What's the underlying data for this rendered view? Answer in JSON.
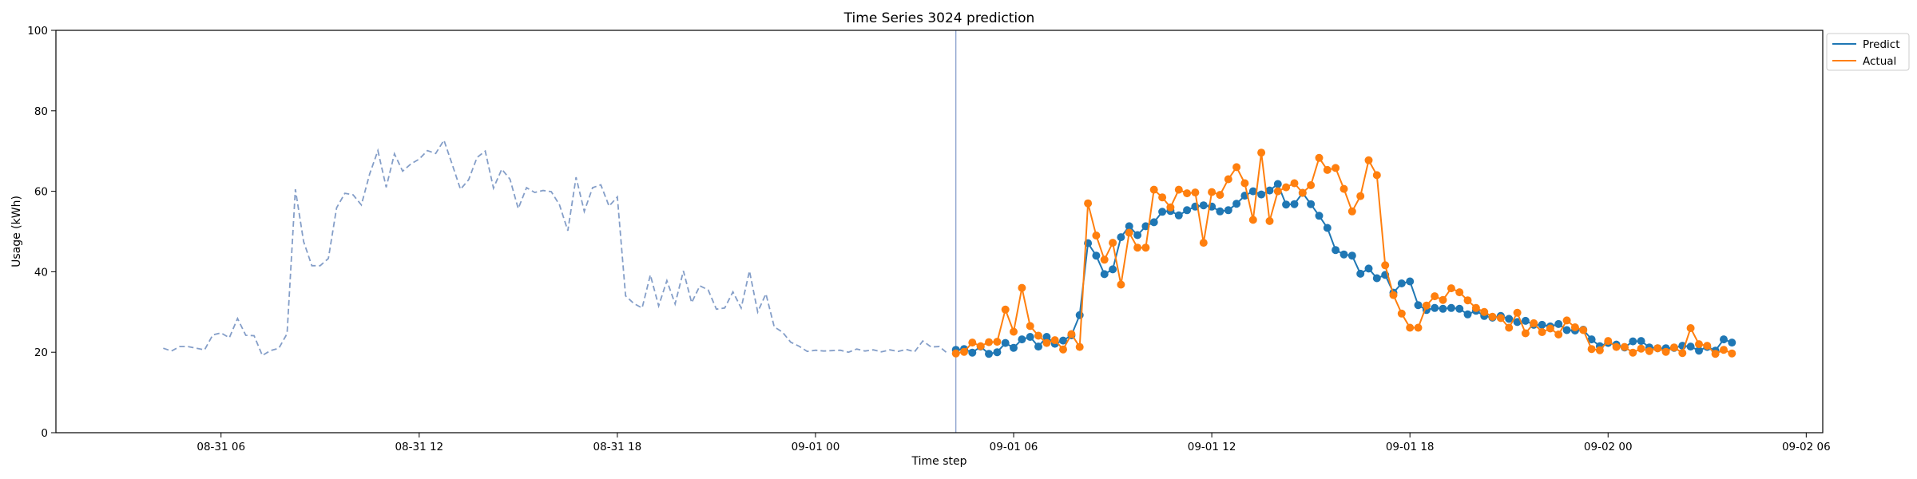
{
  "chart_data": {
    "type": "line",
    "title": "Time Series 3024 prediction",
    "xlabel": "Time step",
    "ylabel": "Usage (kWh)",
    "ylim": [
      0,
      100
    ],
    "xlim": [
      "2024-08-31 01:00",
      "2024-09-02 06:30"
    ],
    "x_ticks": [
      {
        "t": "2024-08-31 06:00",
        "label": "08-31 06"
      },
      {
        "t": "2024-08-31 12:00",
        "label": "08-31 12"
      },
      {
        "t": "2024-08-31 18:00",
        "label": "08-31 18"
      },
      {
        "t": "2024-09-01 00:00",
        "label": "09-01 00"
      },
      {
        "t": "2024-09-01 06:00",
        "label": "09-01 06"
      },
      {
        "t": "2024-09-01 12:00",
        "label": "09-01 12"
      },
      {
        "t": "2024-09-01 18:00",
        "label": "09-01 18"
      },
      {
        "t": "2024-09-02 00:00",
        "label": "09-02 00"
      },
      {
        "t": "2024-09-02 06:00",
        "label": "09-02 06"
      }
    ],
    "y_ticks": [
      0,
      20,
      40,
      60,
      80,
      100
    ],
    "grid": false,
    "legend_position": "top-right outside",
    "interval_minutes": 15,
    "forecast_start": "2024-09-01 04:15",
    "history": {
      "start": "2024-08-31 04:15",
      "style": "dashed",
      "color": "#1f4e9a",
      "values": [
        21,
        20.3,
        21.4,
        21.4,
        21,
        20.6,
        24.3,
        24.8,
        23.6,
        28.4,
        24.2,
        24.1,
        19.2,
        20.4,
        21,
        24.6,
        60.5,
        47.5,
        41.5,
        41.5,
        43.3,
        55.9,
        59.5,
        59.1,
        56.6,
        64.3,
        70.1,
        61,
        69.3,
        65,
        66.8,
        68,
        70.1,
        69.4,
        72.7,
        66.7,
        60.5,
        62.9,
        68.4,
        70,
        60.8,
        65.5,
        63,
        55.7,
        60.9,
        59.7,
        60.2,
        59.9,
        56.6,
        50.2,
        63.5,
        55,
        60.9,
        61.6,
        56.3,
        58.6,
        34,
        32.1,
        31,
        39.2,
        31.5,
        37.8,
        32,
        40.2,
        32.3,
        36.5,
        35.5,
        30.7,
        31,
        35,
        31,
        40.2,
        30,
        34.5,
        26.3,
        25,
        22.5,
        21.5,
        20.2,
        20.5,
        20.3,
        20.4,
        20.5,
        20,
        20.8,
        20.3,
        20.6,
        20.1,
        20.6,
        20.2,
        20.7,
        20.1,
        22.8,
        21.3,
        21.4,
        19.7
      ]
    },
    "series": [
      {
        "name": "Predict",
        "color": "#1f77b4",
        "values": [
          20.6,
          20.8,
          19.9,
          21.4,
          19.6,
          20,
          22.3,
          21.1,
          23.2,
          23.8,
          21.4,
          23.8,
          22.1,
          22.9,
          24.2,
          29.2,
          47.1,
          44,
          39.4,
          40.6,
          48.6,
          51.3,
          49.1,
          51.3,
          52.3,
          54.9,
          55.1,
          54,
          55.3,
          56.2,
          56.5,
          56.2,
          55,
          55.3,
          56.9,
          58.9,
          60,
          59.2,
          60.2,
          61.8,
          56.7,
          56.8,
          59.6,
          56.8,
          53.9,
          50.9,
          45.4,
          44.3,
          44,
          39.5,
          40.8,
          38.4,
          39.2,
          34.8,
          37.1,
          37.6,
          31.7,
          30.5,
          31,
          30.8,
          31,
          30.8,
          29.4,
          30.3,
          29,
          28.6,
          29,
          28.3,
          27.5,
          27.8,
          26.8,
          26.8,
          26.4,
          27,
          25.5,
          25.4,
          25.6,
          23.2,
          21.5,
          22.3,
          21.9,
          21.2,
          22.7,
          22.8,
          21.2,
          21,
          21,
          21.1,
          21.6,
          21.4,
          20.4,
          21.3,
          20.4,
          23.2,
          22.4
        ]
      },
      {
        "name": "Actual",
        "color": "#ff7f0e",
        "values": [
          19.7,
          20.1,
          22.4,
          21.5,
          22.5,
          22.6,
          30.6,
          25.1,
          36,
          26.5,
          24.1,
          22.3,
          23,
          20.7,
          24.5,
          21.3,
          57,
          49,
          43,
          47.2,
          36.8,
          49.7,
          46,
          46,
          60.4,
          58.5,
          56,
          60.4,
          59.5,
          59.7,
          47.2,
          59.8,
          59.1,
          63,
          66,
          62,
          52.9,
          69.6,
          52.6,
          60,
          61,
          62,
          59.6,
          61.5,
          68.3,
          65.3,
          65.8,
          60.6,
          55,
          58.8,
          67.7,
          64,
          41.6,
          34.2,
          29.6,
          26.1,
          26.1,
          31.6,
          33.9,
          33,
          35.9,
          34.9,
          32.9,
          31,
          30,
          28.8,
          28.5,
          26.1,
          29.8,
          24.7,
          27.2,
          25,
          25.9,
          24.4,
          27.9,
          26.2,
          25.5,
          20.8,
          20.5,
          22.8,
          21.3,
          21.3,
          19.9,
          20.9,
          20.3,
          21,
          20.1,
          21.2,
          19.8,
          26,
          22,
          21.6,
          19.6,
          20.6,
          19.7
        ]
      }
    ]
  }
}
